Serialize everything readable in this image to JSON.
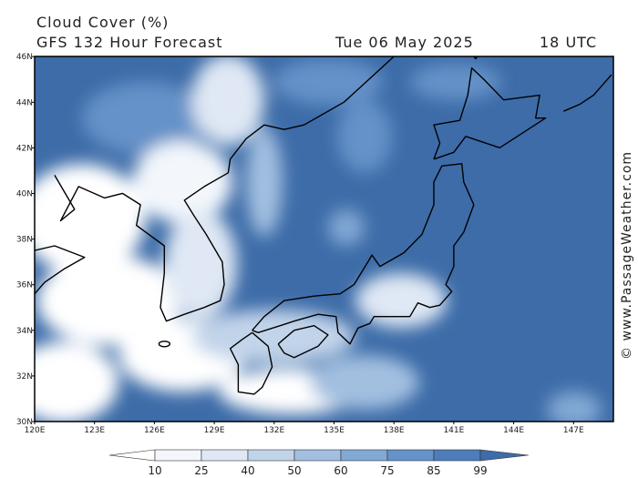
{
  "header": {
    "title": "Cloud Cover (%)",
    "subtitle": "GFS 132 Hour Forecast",
    "date": "Tue 06 May 2025",
    "time": "18 UTC"
  },
  "map": {
    "lon_labels": [
      "120E",
      "123E",
      "126E",
      "129E",
      "132E",
      "135E",
      "138E",
      "141E",
      "144E",
      "147E"
    ],
    "lat_labels": [
      "30N",
      "32N",
      "34N",
      "36N",
      "38N",
      "40N",
      "42N",
      "44N",
      "46N"
    ]
  },
  "credit": "© www.PassageWeather.com",
  "colorbar": {
    "levels": [
      10,
      25,
      40,
      50,
      60,
      75,
      85,
      99
    ],
    "colors": [
      "#ffffff",
      "#f3f7fc",
      "#dfe8f4",
      "#c2d4ea",
      "#a2bfe0",
      "#82a8d4",
      "#6592c8",
      "#4d7dba",
      "#3d6ca8"
    ]
  }
}
